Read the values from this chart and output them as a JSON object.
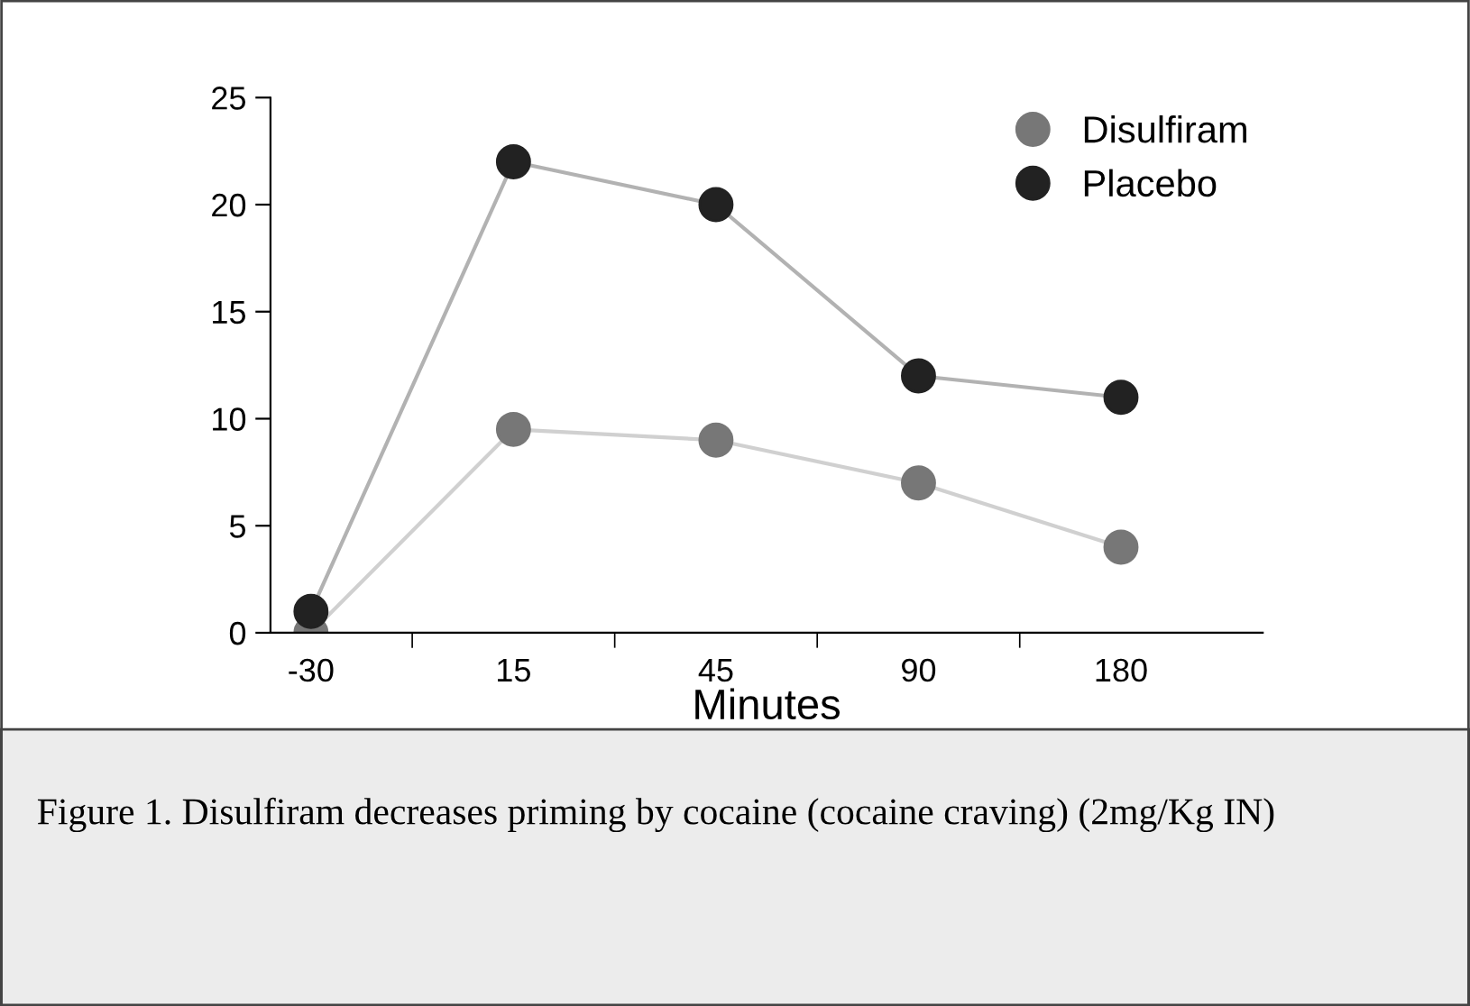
{
  "chart_data": {
    "type": "line",
    "xlabel": "Minutes",
    "categories": [
      "-30",
      "15",
      "45",
      "90",
      "180"
    ],
    "series": [
      {
        "name": "Disulfiram",
        "color": "#777777",
        "values": [
          0,
          9.5,
          9,
          7,
          4
        ]
      },
      {
        "name": "Placebo",
        "color": "#222222",
        "values": [
          1,
          22,
          20,
          12,
          11
        ]
      }
    ],
    "ylim": [
      0,
      25
    ],
    "yticks": [
      0,
      5,
      10,
      15,
      20,
      25
    ],
    "grid": false,
    "legend": "top right",
    "marker": "circle",
    "line_style": "solid",
    "annotations": [
      "Figure 1. Disulfiram decreases priming by cocaine (cocaine craving) (2mg/Kg IN)"
    ]
  }
}
